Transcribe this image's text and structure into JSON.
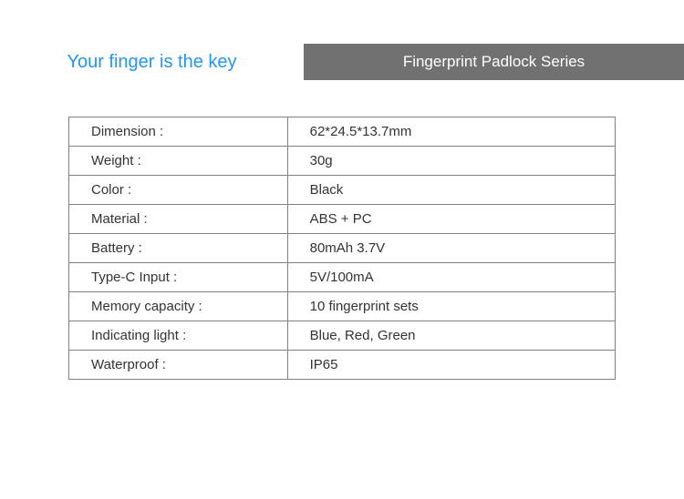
{
  "header": {
    "tagline": "Your finger is the key",
    "series_banner": "Fingerprint Padlock Series"
  },
  "spec_table": {
    "type": "table",
    "border_color": "#808080",
    "label_color": "#333333",
    "value_color": "#333333",
    "font_size": 15,
    "label_column_width": 240,
    "value_column_width": 360,
    "rows": [
      {
        "label": "Dimension :",
        "value": "62*24.5*13.7mm"
      },
      {
        "label": "Weight :",
        "value": "30g"
      },
      {
        "label": "Color :",
        "value": "Black"
      },
      {
        "label": "Material :",
        "value": "ABS + PC"
      },
      {
        "label": "Battery :",
        "value": "80mAh 3.7V"
      },
      {
        "label": "Type-C Input :",
        "value": "5V/100mA"
      },
      {
        "label": "Memory capacity :",
        "value": "10 fingerprint sets"
      },
      {
        "label": "Indicating light :",
        "value": "Blue,  Red, Green"
      },
      {
        "label": "Waterproof  :",
        "value": "IP65"
      }
    ]
  },
  "colors": {
    "tagline_color": "#2196f3",
    "banner_background": "#717171",
    "banner_text": "#ffffff",
    "page_background": "#ffffff"
  }
}
